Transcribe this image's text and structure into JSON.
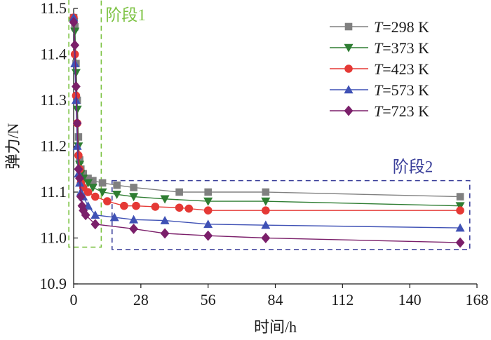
{
  "chart_data": {
    "type": "line",
    "title": "",
    "xlabel": "时间/h",
    "ylabel": "弹力/N",
    "xlim": [
      0,
      168
    ],
    "ylim": [
      10.9,
      11.5
    ],
    "xticks": [
      "0",
      "28",
      "56",
      "84",
      "112",
      "140",
      "168"
    ],
    "yticks": [
      "10.9",
      "11.0",
      "11.1",
      "11.2",
      "11.3",
      "11.4",
      "11.5"
    ],
    "grid": false,
    "legend_position": "top-right",
    "series": [
      {
        "name": "T=298 K",
        "legend_var": "T",
        "legend_rest": "=298 K",
        "color": "#808080",
        "marker": "square",
        "points": [
          [
            0,
            11.48
          ],
          [
            0.5,
            11.46
          ],
          [
            1,
            11.38
          ],
          [
            1.5,
            11.3
          ],
          [
            2,
            11.22
          ],
          [
            2.5,
            11.17
          ],
          [
            3,
            11.15
          ],
          [
            4,
            11.14
          ],
          [
            6,
            11.13
          ],
          [
            8,
            11.125
          ],
          [
            12,
            11.12
          ],
          [
            18,
            11.115
          ],
          [
            25,
            11.11
          ],
          [
            44,
            11.1
          ],
          [
            56,
            11.1
          ],
          [
            80,
            11.1
          ],
          [
            161,
            11.09
          ]
        ]
      },
      {
        "name": "T=373 K",
        "legend_var": "T",
        "legend_rest": "=373 K",
        "color": "#2e7d32",
        "marker": "triangle-down",
        "points": [
          [
            0,
            11.47
          ],
          [
            0.5,
            11.45
          ],
          [
            1,
            11.36
          ],
          [
            1.5,
            11.28
          ],
          [
            2,
            11.2
          ],
          [
            2.5,
            11.16
          ],
          [
            3,
            11.14
          ],
          [
            4,
            11.13
          ],
          [
            6,
            11.12
          ],
          [
            8,
            11.11
          ],
          [
            12,
            11.1
          ],
          [
            18,
            11.095
          ],
          [
            25,
            11.09
          ],
          [
            38,
            11.085
          ],
          [
            56,
            11.08
          ],
          [
            80,
            11.08
          ],
          [
            161,
            11.07
          ]
        ]
      },
      {
        "name": "T=423 K",
        "legend_var": "T",
        "legend_rest": "=423 K",
        "color": "#e53935",
        "marker": "circle",
        "points": [
          [
            0,
            11.48
          ],
          [
            0.5,
            11.4
          ],
          [
            1,
            11.31
          ],
          [
            1.5,
            11.25
          ],
          [
            2,
            11.18
          ],
          [
            2.5,
            11.15
          ],
          [
            3,
            11.12
          ],
          [
            4,
            11.11
          ],
          [
            6,
            11.1
          ],
          [
            9,
            11.09
          ],
          [
            14,
            11.08
          ],
          [
            21,
            11.07
          ],
          [
            26,
            11.07
          ],
          [
            34,
            11.068
          ],
          [
            44,
            11.066
          ],
          [
            48,
            11.064
          ],
          [
            56,
            11.06
          ],
          [
            80,
            11.06
          ],
          [
            161,
            11.06
          ]
        ]
      },
      {
        "name": "T=573 K",
        "legend_var": "T",
        "legend_rest": "=573 K",
        "color": "#3f51b5",
        "marker": "triangle-up",
        "points": [
          [
            0,
            11.48
          ],
          [
            0.5,
            11.38
          ],
          [
            1,
            11.3
          ],
          [
            1.5,
            11.2
          ],
          [
            2,
            11.14
          ],
          [
            2.5,
            11.12
          ],
          [
            3,
            11.1
          ],
          [
            4,
            11.09
          ],
          [
            6,
            11.07
          ],
          [
            9,
            11.05
          ],
          [
            17,
            11.045
          ],
          [
            25,
            11.04
          ],
          [
            38,
            11.038
          ],
          [
            56,
            11.03
          ],
          [
            80,
            11.028
          ],
          [
            161,
            11.022
          ]
        ]
      },
      {
        "name": "T=723 K",
        "legend_var": "T",
        "legend_rest": "=723 K",
        "color": "#7b1f6a",
        "marker": "diamond",
        "points": [
          [
            0,
            11.47
          ],
          [
            0.5,
            11.42
          ],
          [
            1,
            11.33
          ],
          [
            1.5,
            11.25
          ],
          [
            2,
            11.15
          ],
          [
            2.5,
            11.13
          ],
          [
            3,
            11.09
          ],
          [
            3.5,
            11.07
          ],
          [
            4,
            11.06
          ],
          [
            5,
            11.05
          ],
          [
            9,
            11.03
          ],
          [
            25,
            11.02
          ],
          [
            38,
            11.01
          ],
          [
            56,
            11.005
          ],
          [
            80,
            11.0
          ],
          [
            161,
            10.99
          ]
        ]
      }
    ],
    "annotations": [
      {
        "label": "阶段1",
        "color": "#7cc242",
        "x_range": [
          -2,
          11.5
        ],
        "y_range": [
          10.98,
          11.52
        ]
      },
      {
        "label": "阶段2",
        "color": "#3a3f9a",
        "x_range": [
          16,
          165
        ],
        "y_range": [
          10.975,
          11.125
        ]
      }
    ]
  }
}
